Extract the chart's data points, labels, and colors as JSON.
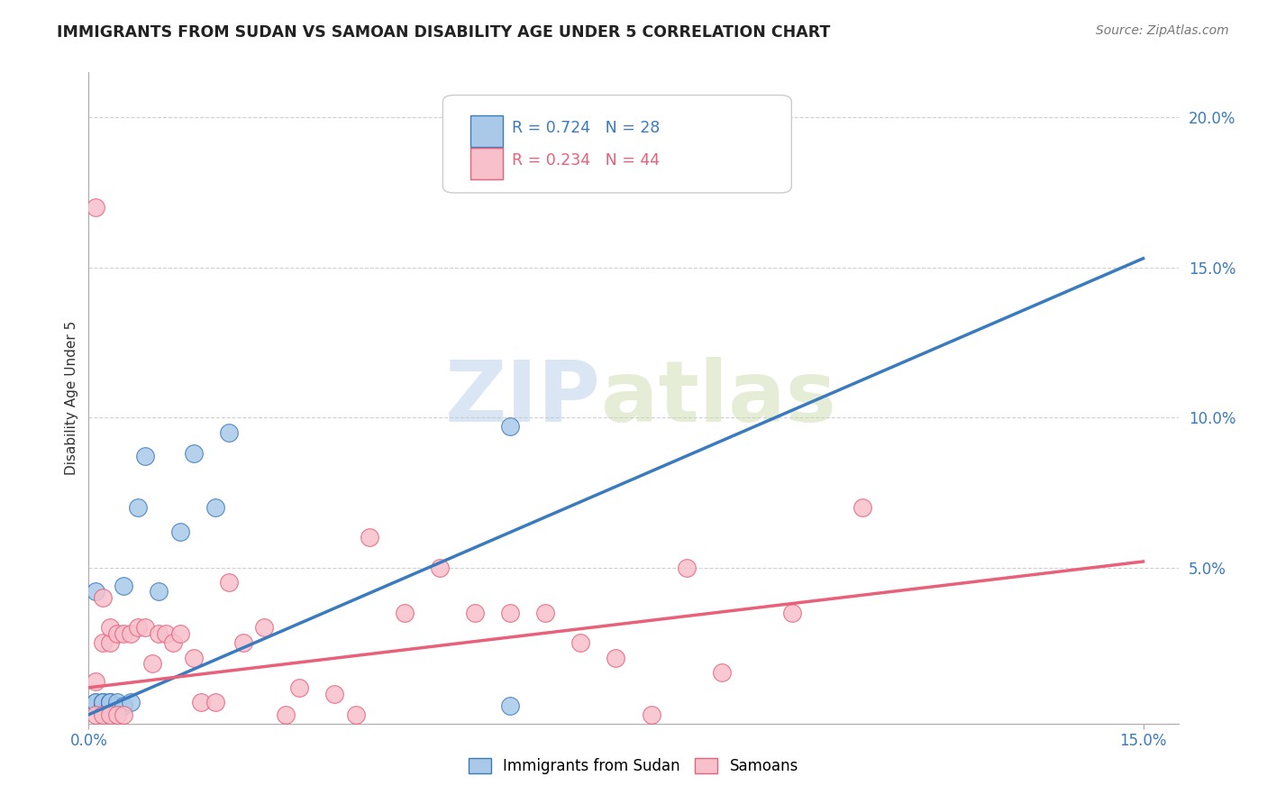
{
  "title": "IMMIGRANTS FROM SUDAN VS SAMOAN DISABILITY AGE UNDER 5 CORRELATION CHART",
  "source": "Source: ZipAtlas.com",
  "ylabel": "Disability Age Under 5",
  "xlim": [
    0.0,
    0.155
  ],
  "ylim": [
    -0.002,
    0.215
  ],
  "ytick_positions": [
    0.05,
    0.1,
    0.15,
    0.2
  ],
  "ytick_labels": [
    "5.0%",
    "10.0%",
    "15.0%",
    "20.0%"
  ],
  "xtick_positions": [
    0.0,
    0.15
  ],
  "xtick_labels": [
    "0.0%",
    "15.0%"
  ],
  "blue_R": 0.724,
  "blue_N": 28,
  "pink_R": 0.234,
  "pink_N": 44,
  "blue_scatter_x": [
    0.001,
    0.001,
    0.001,
    0.001,
    0.001,
    0.002,
    0.002,
    0.002,
    0.002,
    0.002,
    0.003,
    0.003,
    0.003,
    0.003,
    0.004,
    0.004,
    0.005,
    0.005,
    0.006,
    0.007,
    0.008,
    0.01,
    0.013,
    0.015,
    0.018,
    0.02,
    0.06,
    0.06
  ],
  "blue_scatter_y": [
    0.004,
    0.004,
    0.005,
    0.005,
    0.042,
    0.004,
    0.004,
    0.005,
    0.005,
    0.005,
    0.004,
    0.005,
    0.005,
    0.005,
    0.004,
    0.005,
    0.004,
    0.044,
    0.005,
    0.07,
    0.087,
    0.042,
    0.062,
    0.088,
    0.07,
    0.095,
    0.004,
    0.097
  ],
  "pink_scatter_x": [
    0.001,
    0.001,
    0.001,
    0.002,
    0.002,
    0.002,
    0.003,
    0.003,
    0.003,
    0.004,
    0.004,
    0.005,
    0.005,
    0.006,
    0.007,
    0.008,
    0.009,
    0.01,
    0.011,
    0.012,
    0.013,
    0.015,
    0.016,
    0.018,
    0.02,
    0.022,
    0.025,
    0.028,
    0.03,
    0.035,
    0.038,
    0.04,
    0.045,
    0.05,
    0.055,
    0.06,
    0.065,
    0.07,
    0.075,
    0.08,
    0.085,
    0.09,
    0.1,
    0.11
  ],
  "pink_scatter_y": [
    0.001,
    0.012,
    0.17,
    0.001,
    0.025,
    0.04,
    0.001,
    0.025,
    0.03,
    0.001,
    0.028,
    0.001,
    0.028,
    0.028,
    0.03,
    0.03,
    0.018,
    0.028,
    0.028,
    0.025,
    0.028,
    0.02,
    0.005,
    0.005,
    0.045,
    0.025,
    0.03,
    0.001,
    0.01,
    0.008,
    0.001,
    0.06,
    0.035,
    0.05,
    0.035,
    0.035,
    0.035,
    0.025,
    0.02,
    0.001,
    0.05,
    0.015,
    0.035,
    0.07
  ],
  "blue_line_x": [
    0.0,
    0.15
  ],
  "blue_line_y": [
    0.001,
    0.153
  ],
  "pink_line_x": [
    0.0,
    0.15
  ],
  "pink_line_y": [
    0.01,
    0.052
  ],
  "blue_color": "#aac9e8",
  "pink_color": "#f7c0cb",
  "blue_line_color": "#3a7bbf",
  "pink_line_color": "#e8607a",
  "watermark_zip": "ZIP",
  "watermark_atlas": "atlas",
  "background_color": "#ffffff",
  "grid_color": "#d0d0d0",
  "legend_label_blue": "R = 0.724   N = 28",
  "legend_label_pink": "R = 0.234   N = 44",
  "bottom_label_blue": "Immigrants from Sudan",
  "bottom_label_pink": "Samoans"
}
